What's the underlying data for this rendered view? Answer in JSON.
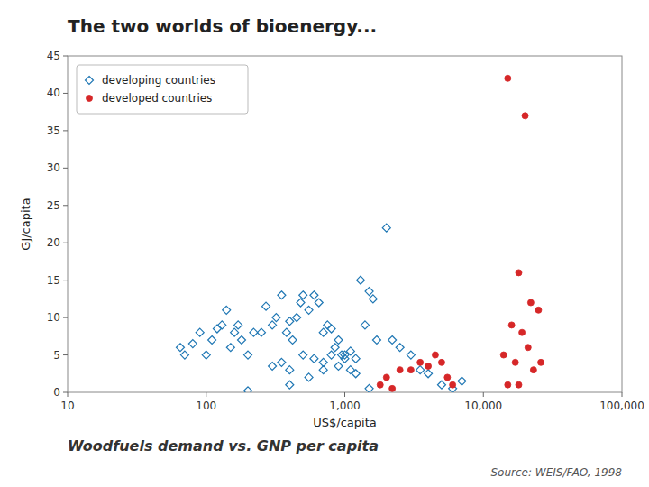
{
  "chart_data": {
    "type": "scatter",
    "title": "The two worlds of bioenergy...",
    "subtitle": "Woodfuels demand vs. GNP per capita",
    "annotations": [
      "Source: WEIS/FAO, 1998"
    ],
    "xlabel": "US$/capita",
    "ylabel": "GJ/capita",
    "log": "x",
    "grid": false,
    "legend": "upper left",
    "xlim": [
      10,
      100000
    ],
    "ylim": [
      0,
      45
    ],
    "xticks": [
      10,
      100,
      {
        "value": 1000,
        "label": "1,000"
      },
      {
        "value": 10000,
        "label": "10,000"
      },
      {
        "value": 100000,
        "label": "100,000"
      }
    ],
    "yticks": [
      0,
      5,
      10,
      15,
      20,
      25,
      30,
      35,
      40,
      45
    ],
    "series": [
      {
        "name": "developing countries",
        "marker": "diamond",
        "color": "#1f77b4",
        "x": [
          65,
          70,
          80,
          90,
          100,
          110,
          120,
          130,
          140,
          150,
          160,
          170,
          180,
          200,
          220,
          250,
          270,
          300,
          320,
          350,
          380,
          400,
          420,
          450,
          480,
          500,
          550,
          600,
          650,
          700,
          750,
          800,
          850,
          900,
          950,
          1000,
          1100,
          1200,
          1300,
          1400,
          1500,
          1600,
          1700,
          2000,
          2200,
          2500,
          3000,
          3500,
          4000,
          5000,
          6000,
          7000,
          300,
          350,
          400,
          500,
          600,
          700,
          800,
          900,
          1000,
          1100,
          1200,
          1500,
          700,
          550,
          400,
          200
        ],
        "values": [
          6,
          5,
          6.5,
          8,
          5,
          7,
          8.5,
          9,
          11,
          6,
          8,
          9,
          7,
          5,
          8,
          8,
          11.5,
          9,
          10,
          13,
          8,
          9.5,
          7,
          10,
          12,
          13,
          11,
          13,
          12,
          8,
          9,
          8.5,
          6,
          7,
          5,
          5,
          5.5,
          4.5,
          15,
          9,
          13.5,
          12.5,
          7,
          22,
          7,
          6,
          5,
          3,
          2.5,
          1,
          0.5,
          1.5,
          3.5,
          4,
          3,
          5,
          4.5,
          3,
          5,
          3.5,
          4.5,
          3,
          2.5,
          0.5,
          4,
          2,
          1,
          0.2
        ]
      },
      {
        "name": "developed countries",
        "marker": "circle",
        "color": "#d62728",
        "x": [
          15000,
          20000,
          18000,
          22000,
          25000,
          16000,
          19000,
          21000,
          14000,
          17000,
          23000,
          26000,
          15000,
          18000,
          3000,
          4000,
          5000,
          4500,
          3500,
          2500,
          2000,
          1800,
          2200,
          6000,
          5500
        ],
        "values": [
          42,
          37,
          16,
          12,
          11,
          9,
          8,
          6,
          5,
          4,
          3,
          4,
          1,
          1,
          3,
          3.5,
          4,
          5,
          4,
          3,
          2,
          1,
          0.5,
          1,
          2
        ]
      }
    ]
  }
}
